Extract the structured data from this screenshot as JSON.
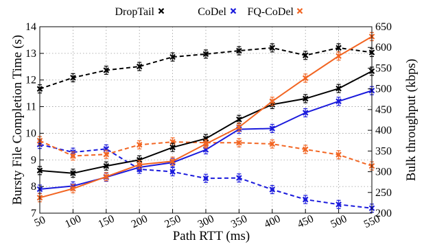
{
  "chart_data": {
    "type": "line",
    "x": [
      50,
      100,
      150,
      200,
      250,
      300,
      350,
      400,
      450,
      500,
      550
    ],
    "xlabel": "Path RTT (ms)",
    "x_tick_labels": [
      "50",
      "100",
      "150",
      "200",
      "250",
      "300",
      "350",
      "400",
      "450",
      "500",
      "550"
    ],
    "ylabel": "Bursty File Completion Time (s)",
    "ylim": [
      7,
      14
    ],
    "y_tick_labels": [
      "7",
      "8",
      "9",
      "10",
      "11",
      "12",
      "13",
      "14"
    ],
    "y2label": "Bulk throughput (kbps)",
    "y2lim": [
      200,
      650
    ],
    "y2_tick_labels": [
      "200",
      "250",
      "300",
      "350",
      "400",
      "450",
      "500",
      "550",
      "600",
      "650"
    ],
    "grid": true,
    "legend_position": "top",
    "legend_labels": [
      "DropTail",
      "CoDel",
      "FQ-CoDel"
    ],
    "series": [
      {
        "name": "DropTail",
        "color": "#000000",
        "axis": "left",
        "style": "solid",
        "values": [
          null,
          null,
          null,
          null,
          null,
          null,
          null,
          null,
          null,
          null,
          null
        ]
      },
      {
        "name": "CoDel",
        "color": "#1a1adc",
        "axis": "left",
        "style": "solid",
        "values": [
          null,
          null,
          null,
          null,
          null,
          null,
          null,
          null,
          null,
          null,
          null
        ]
      },
      {
        "name": "FQ-CoDel",
        "color": "#f26522",
        "axis": "left",
        "style": "solid",
        "values": [
          null,
          null,
          null,
          null,
          null,
          null,
          null,
          null,
          null,
          null,
          null
        ]
      }
    ],
    "solid_series": [
      {
        "legend": "DropTail",
        "color": "#000000",
        "axis": "left",
        "values": [
          8.6,
          8.5,
          8.77,
          9.0,
          9.47,
          9.8,
          10.52,
          11.08,
          11.3,
          11.68,
          12.33
        ]
      },
      {
        "legend": "CoDel",
        "color": "#1a1adc",
        "axis": "left",
        "values": [
          7.9,
          8.02,
          8.35,
          8.72,
          8.9,
          9.38,
          10.15,
          10.18,
          10.77,
          11.2,
          11.6
        ]
      },
      {
        "legend": "FQ-CoDel",
        "color": "#f26522",
        "axis": "left",
        "values": [
          7.58,
          7.92,
          8.37,
          8.82,
          8.95,
          9.6,
          10.23,
          11.2,
          12.07,
          12.9,
          13.63
        ]
      }
    ],
    "dashed_series": [
      {
        "legend": "DropTail",
        "color": "#000000",
        "axis": "right",
        "values": [
          500,
          527,
          545,
          554,
          577,
          584,
          592,
          599,
          581,
          599,
          588
        ]
      },
      {
        "legend": "CoDel",
        "color": "#1a1adc",
        "axis": "right",
        "values": [
          366,
          347,
          355,
          306,
          300,
          284,
          285,
          257,
          233,
          221,
          212
        ]
      },
      {
        "legend": "FQ-CoDel",
        "color": "#f26522",
        "axis": "right",
        "values": [
          375,
          338,
          342,
          365,
          372,
          370,
          370,
          367,
          354,
          341,
          314
        ]
      }
    ]
  }
}
